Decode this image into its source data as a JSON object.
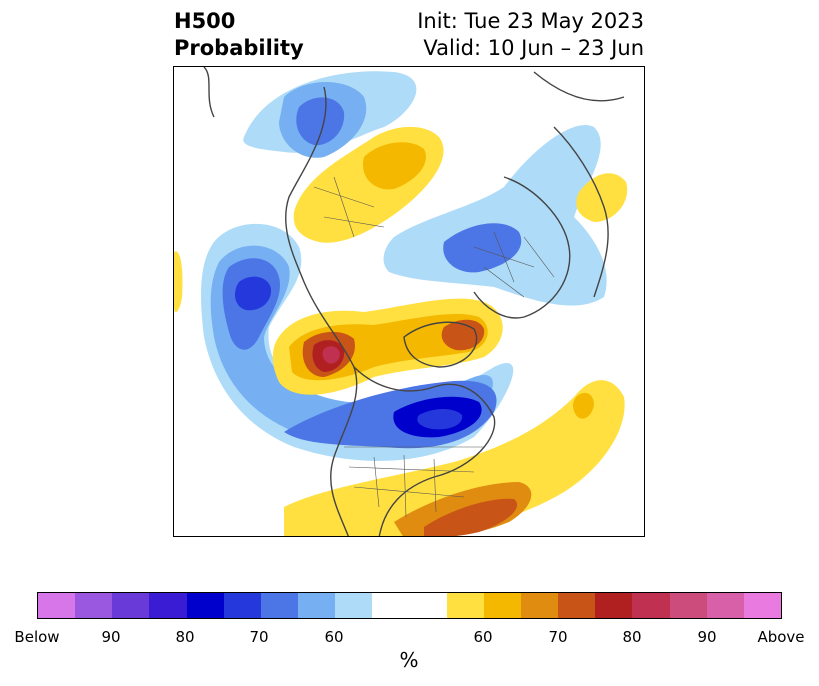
{
  "title": {
    "left_line1": "H500",
    "left_line2": "Probability",
    "right_line1": "Init: Tue 23 May 2023",
    "right_line2": "Valid: 10 Jun – 23 Jun"
  },
  "colorbar": {
    "unit_label": "%",
    "colors": [
      "#d676e8",
      "#9a58e0",
      "#6a3ad8",
      "#3a1cd4",
      "#0000cc",
      "#2438dc",
      "#4c76e6",
      "#76b0f2",
      "#aedcf8",
      "#ffffff",
      "#ffe040",
      "#f4b800",
      "#e08c10",
      "#c85418",
      "#b02020",
      "#c03050",
      "#cc4c7c",
      "#d860a8",
      "#e87ae0"
    ],
    "tick_labels": [
      "Below",
      "90",
      "80",
      "70",
      "60",
      "60",
      "70",
      "80",
      "90",
      "Above"
    ]
  },
  "colors": {
    "below_strong": "#0000cc",
    "below_moderate": "#4c76e6",
    "below_light": "#aedcf8",
    "above_light": "#ffe040",
    "above_moderate": "#e08c10",
    "above_strong": "#b02020",
    "coastline": "#444444"
  }
}
